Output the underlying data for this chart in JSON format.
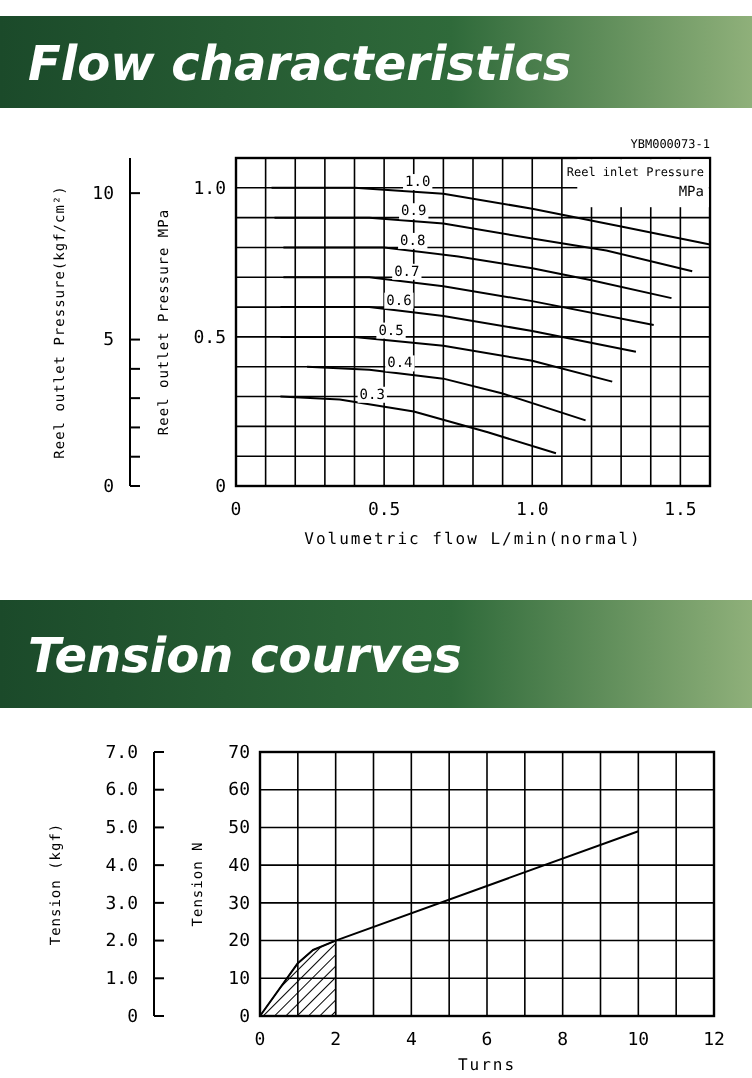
{
  "chart_data": [
    {
      "type": "line",
      "title": "Flow characteristics",
      "xlabel": "Volumetric flow L/min(normal)",
      "ylabel": "Reel outlet Pressure MPa",
      "y2label": "Reel outlet Pressure(kgf/cm²)",
      "legend_title": "Reel inlet Pressure MPa",
      "annotations": [
        "YBM000073-1"
      ],
      "xlim": [
        0,
        1.6
      ],
      "ylim": [
        0,
        1.1
      ],
      "y2lim": [
        0,
        11.2
      ],
      "xticks": [
        0,
        {
          "value": 0.1,
          "label": null
        },
        {
          "value": 0.2,
          "label": null
        },
        {
          "value": 0.3,
          "label": null
        },
        {
          "value": 0.4,
          "label": null
        },
        0.5,
        {
          "value": 0.6,
          "label": null
        },
        {
          "value": 0.7,
          "label": null
        },
        {
          "value": 0.8,
          "label": null
        },
        {
          "value": 0.9,
          "label": null
        },
        {
          "value": 1,
          "label": "1.0"
        },
        {
          "value": 1.1,
          "label": null
        },
        {
          "value": 1.2,
          "label": null
        },
        {
          "value": 1.3,
          "label": null
        },
        {
          "value": 1.4,
          "label": null
        },
        1.5
      ],
      "yticks": [
        0,
        {
          "value": 0.1,
          "label": null
        },
        {
          "value": 0.2,
          "label": null
        },
        {
          "value": 0.3,
          "label": null
        },
        {
          "value": 0.4,
          "label": null
        },
        0.5,
        {
          "value": 0.6,
          "label": null
        },
        {
          "value": 0.7,
          "label": null
        },
        {
          "value": 0.8,
          "label": null
        },
        {
          "value": 0.9,
          "label": null
        },
        {
          "value": 1,
          "label": "1.0"
        }
      ],
      "y2ticks": [
        0,
        {
          "value": 1,
          "label": null
        },
        {
          "value": 2,
          "label": null
        },
        {
          "value": 3,
          "label": null
        },
        {
          "value": 4,
          "label": null
        },
        5,
        10
      ],
      "grid": true,
      "series": [
        {
          "name": "1.0",
          "color": "#000000",
          "x": [
            0.12,
            0.4,
            0.7,
            1.0,
            1.3,
            1.6
          ],
          "values": [
            1.0,
            1.0,
            0.98,
            0.93,
            0.87,
            0.81
          ]
        },
        {
          "name": "0.9",
          "color": "#000000",
          "x": [
            0.13,
            0.45,
            0.7,
            1.0,
            1.25,
            1.54
          ],
          "values": [
            0.9,
            0.9,
            0.88,
            0.83,
            0.79,
            0.72
          ]
        },
        {
          "name": "0.8",
          "color": "#000000",
          "x": [
            0.16,
            0.5,
            0.75,
            1.0,
            1.2,
            1.47
          ],
          "values": [
            0.8,
            0.8,
            0.77,
            0.73,
            0.69,
            0.63
          ]
        },
        {
          "name": "0.7",
          "color": "#000000",
          "x": [
            0.16,
            0.45,
            0.7,
            1.0,
            1.41
          ],
          "values": [
            0.7,
            0.7,
            0.67,
            0.62,
            0.54
          ]
        },
        {
          "name": "0.6",
          "color": "#000000",
          "x": [
            0.15,
            0.45,
            0.7,
            1.0,
            1.35
          ],
          "values": [
            0.6,
            0.6,
            0.57,
            0.52,
            0.45
          ]
        },
        {
          "name": "0.5",
          "color": "#000000",
          "x": [
            0.15,
            0.4,
            0.7,
            1.0,
            1.27
          ],
          "values": [
            0.5,
            0.5,
            0.47,
            0.42,
            0.35
          ]
        },
        {
          "name": "0.4",
          "color": "#000000",
          "x": [
            0.24,
            0.45,
            0.7,
            0.9,
            1.18
          ],
          "values": [
            0.4,
            0.39,
            0.36,
            0.31,
            0.22
          ]
        },
        {
          "name": "0.3",
          "color": "#000000",
          "x": [
            0.15,
            0.35,
            0.6,
            0.85,
            1.08
          ],
          "values": [
            0.3,
            0.29,
            0.25,
            0.18,
            0.11
          ]
        }
      ]
    },
    {
      "type": "line",
      "title": "Tension courves",
      "xlabel": "Turns",
      "ylabel": "Tension N",
      "y2label": "Tension (kgf)",
      "xlim": [
        0,
        12
      ],
      "ylim": [
        0,
        70
      ],
      "y2lim": [
        0,
        7
      ],
      "xticks": [
        0,
        {
          "value": 1,
          "label": null
        },
        2,
        {
          "value": 3,
          "label": null
        },
        4,
        {
          "value": 5,
          "label": null
        },
        6,
        {
          "value": 7,
          "label": null
        },
        8,
        {
          "value": 9,
          "label": null
        },
        10,
        {
          "value": 11,
          "label": null
        },
        12
      ],
      "yticks": [
        0,
        10,
        20,
        30,
        40,
        50,
        60,
        70
      ],
      "y2ticks": [
        0,
        {
          "value": 1,
          "label": "1.0"
        },
        {
          "value": 2,
          "label": "2.0"
        },
        {
          "value": 3,
          "label": "3.0"
        },
        {
          "value": 4,
          "label": "4.0"
        },
        {
          "value": 5,
          "label": "5.0"
        },
        {
          "value": 6,
          "label": "6.0"
        },
        {
          "value": 7,
          "label": "7.0"
        }
      ],
      "grid": true,
      "series": [
        {
          "type": "area",
          "color": "#000000",
          "x": [
            0,
            1,
            1.4,
            2
          ],
          "values": [
            0,
            14,
            17.5,
            20
          ]
        },
        {
          "color": "#000000",
          "x": [
            0,
            1,
            1.4,
            2,
            10
          ],
          "values": [
            0,
            14,
            17.5,
            20,
            49
          ]
        }
      ]
    }
  ]
}
